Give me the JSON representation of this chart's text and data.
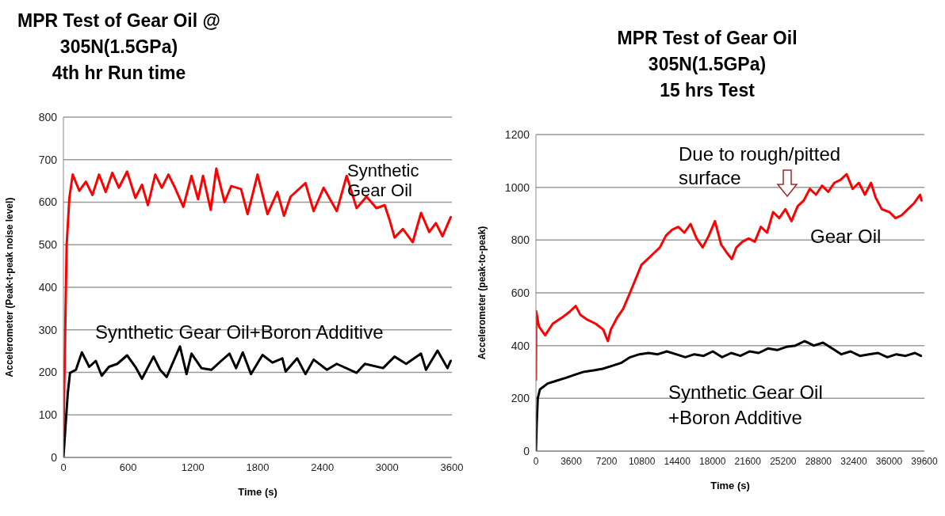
{
  "chart_data": [
    {
      "type": "line",
      "title": "MPR Test of Gear Oil @\n305N(1.5GPa)\n4th hr Run time",
      "xlabel": "Time (s)",
      "ylabel": "Accelerometer (Peak-t-peak noise level)",
      "xlim": [
        0,
        3600
      ],
      "xticks": [
        0,
        600,
        1200,
        1800,
        2400,
        3000,
        3600
      ],
      "ylim": [
        0,
        800
      ],
      "yticks": [
        0,
        100,
        200,
        300,
        400,
        500,
        600,
        700,
        800
      ],
      "grid": "y",
      "legend": false,
      "marker": "none",
      "line_style": "solid",
      "series": [
        {
          "name": "Synthetic Gear Oil",
          "color": "#ff0000",
          "x": [
            0,
            30,
            55,
            86,
            147,
            208,
            269,
            330,
            392,
            453,
            514,
            590,
            667,
            728,
            783,
            851,
            912,
            973,
            1034,
            1111,
            1187,
            1248,
            1294,
            1365,
            1417,
            1493,
            1555,
            1646,
            1707,
            1799,
            1891,
            1983,
            2044,
            2105,
            2243,
            2319,
            2411,
            2533,
            2625,
            2717,
            2809,
            2901,
            2977,
            3023,
            3069,
            3146,
            3237,
            3314,
            3390,
            3452,
            3513,
            3589
          ],
          "values": [
            50,
            500,
            610,
            665,
            627,
            648,
            617,
            665,
            624,
            669,
            634,
            672,
            610,
            641,
            593,
            665,
            634,
            665,
            634,
            589,
            662,
            607,
            662,
            582,
            679,
            600,
            638,
            631,
            572,
            665,
            572,
            624,
            568,
            613,
            645,
            579,
            634,
            579,
            662,
            586,
            613,
            586,
            593,
            558,
            517,
            537,
            506,
            575,
            530,
            551,
            520,
            565
          ]
        },
        {
          "name": "Synthetic Gear Oil+Boron Additive",
          "color": "#000000",
          "x": [
            0,
            40,
            61,
            116,
            171,
            239,
            300,
            355,
            422,
            499,
            590,
            667,
            728,
            835,
            896,
            957,
            1080,
            1141,
            1187,
            1279,
            1371,
            1462,
            1539,
            1600,
            1662,
            1738,
            1845,
            1937,
            2029,
            2059,
            2166,
            2243,
            2319,
            2442,
            2533,
            2717,
            2794,
            2962,
            3069,
            3176,
            3314,
            3360,
            3467,
            3559,
            3589
          ],
          "values": [
            0,
            150,
            199,
            206,
            247,
            213,
            227,
            192,
            213,
            220,
            240,
            213,
            185,
            237,
            206,
            189,
            261,
            196,
            244,
            210,
            206,
            227,
            244,
            210,
            247,
            196,
            241,
            223,
            233,
            202,
            233,
            196,
            230,
            206,
            220,
            199,
            220,
            210,
            237,
            220,
            244,
            206,
            251,
            210,
            227
          ]
        }
      ]
    },
    {
      "type": "line",
      "title": "MPR Test of Gear Oil\n305N(1.5GPa)\n15 hrs Test",
      "xlabel": "Time (s)",
      "ylabel": "Accelerometer (peak-to-peak)",
      "xlim": [
        0,
        39600
      ],
      "xticks": [
        0,
        3600,
        7200,
        10800,
        14400,
        18000,
        21600,
        25200,
        28800,
        32400,
        36000,
        39600
      ],
      "ylim": [
        0,
        1200
      ],
      "yticks": [
        0,
        200,
        400,
        600,
        800,
        1000,
        1200
      ],
      "grid": "y",
      "legend": false,
      "marker": "none",
      "line_style": "solid",
      "annotations": [
        "Due to rough/pitted surface"
      ],
      "series": [
        {
          "name": "Gear Oil",
          "color": "#ff0000",
          "x": [
            0,
            30,
            310,
            940,
            1720,
            2650,
            3430,
            4060,
            4520,
            5150,
            6080,
            6860,
            7330,
            7640,
            8270,
            8890,
            9520,
            10140,
            10760,
            11390,
            12010,
            12640,
            13260,
            13880,
            14510,
            15130,
            15760,
            16380,
            17000,
            17630,
            18250,
            18880,
            19500,
            19970,
            20440,
            21060,
            21680,
            22310,
            22930,
            23560,
            24180,
            24800,
            25430,
            26050,
            26680,
            27300,
            27920,
            28550,
            29170,
            29800,
            30420,
            31040,
            31670,
            32290,
            32920,
            33540,
            34160,
            34630,
            35260,
            36040,
            36660,
            37280,
            37910,
            38530,
            39160,
            39310
          ],
          "values": [
            270,
            530,
            472,
            439,
            483,
            506,
            528,
            550,
            517,
            500,
            483,
            461,
            417,
            461,
            506,
            539,
            594,
            650,
            706,
            728,
            750,
            772,
            817,
            839,
            850,
            828,
            861,
            806,
            772,
            817,
            872,
            783,
            750,
            728,
            772,
            794,
            806,
            794,
            850,
            828,
            906,
            883,
            917,
            872,
            928,
            950,
            994,
            972,
            1006,
            983,
            1017,
            1028,
            1050,
            994,
            1017,
            972,
            1017,
            961,
            917,
            906,
            883,
            894,
            917,
            939,
            972,
            950
          ]
        },
        {
          "name": "Synthetic Gear Oil +Boron Additive",
          "color": "#000000",
          "x": [
            0,
            90,
            190,
            410,
            1190,
            2120,
            3060,
            3990,
            4930,
            5870,
            6800,
            7740,
            8670,
            9610,
            10550,
            11480,
            12420,
            13350,
            14290,
            15230,
            16160,
            17100,
            18030,
            18970,
            19910,
            20840,
            21780,
            22710,
            23650,
            24590,
            25520,
            26460,
            27390,
            28330,
            29270,
            30200,
            31140,
            32070,
            33010,
            33950,
            34880,
            35820,
            36750,
            37690,
            38630,
            39250
          ],
          "values": [
            0,
            113,
            201,
            234,
            256,
            267,
            278,
            290,
            301,
            306,
            312,
            323,
            334,
            356,
            367,
            372,
            367,
            378,
            367,
            356,
            367,
            361,
            378,
            356,
            372,
            361,
            378,
            372,
            389,
            383,
            395,
            400,
            417,
            400,
            411,
            389,
            367,
            378,
            361,
            367,
            372,
            356,
            367,
            361,
            372,
            361
          ]
        }
      ]
    }
  ]
}
